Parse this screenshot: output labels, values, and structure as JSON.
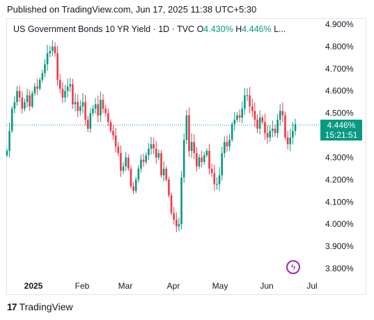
{
  "published": "Published on TradingView.com, Jun 17, 2025 11:38 UTC+5:30",
  "legend": {
    "symbol": "US Government Bonds 10 YR Yield · 1D · TVC",
    "open_label": "O",
    "open_value": "4.430%",
    "high_label": "H",
    "high_value": "4.446%",
    "truncated": "L..."
  },
  "price_tag": {
    "price": "4.446%",
    "countdown": "15:21:51"
  },
  "brand": "TradingView",
  "colors": {
    "up": "#089981",
    "down": "#f23645",
    "event": "#9c27b0"
  },
  "icons": {
    "event": "lightning-bolt-icon",
    "logo": "tradingview-logo-icon"
  },
  "chart_data": {
    "type": "candlestick",
    "title": "US Government Bonds 10 YR Yield · 1D · TVC",
    "y_unit": "%",
    "ylim": [
      3.8,
      4.9
    ],
    "y_ticks": [
      "4.900%",
      "4.800%",
      "4.700%",
      "4.600%",
      "4.500%",
      "4.300%",
      "4.200%",
      "4.100%",
      "4.000%",
      "3.900%",
      "3.800%"
    ],
    "x_ticks": [
      "2025",
      "Feb",
      "Mar",
      "Apr",
      "May",
      "Jun",
      "Jul"
    ],
    "last_price": 4.446,
    "closes": [
      4.33,
      4.42,
      4.52,
      4.55,
      4.6,
      4.57,
      4.52,
      4.55,
      4.58,
      4.53,
      4.59,
      4.62,
      4.61,
      4.65,
      4.68,
      4.72,
      4.77,
      4.78,
      4.8,
      4.77,
      4.65,
      4.61,
      4.57,
      4.6,
      4.62,
      4.63,
      4.54,
      4.55,
      4.51,
      4.53,
      4.55,
      4.47,
      4.43,
      4.5,
      4.52,
      4.54,
      4.49,
      4.56,
      4.52,
      4.5,
      4.46,
      4.42,
      4.4,
      4.35,
      4.32,
      4.24,
      4.26,
      4.3,
      4.25,
      4.17,
      4.15,
      4.2,
      4.25,
      4.29,
      4.28,
      4.31,
      4.34,
      4.36,
      4.34,
      4.3,
      4.32,
      4.22,
      4.25,
      4.2,
      4.13,
      4.05,
      4.02,
      3.99,
      4.0,
      4.21,
      4.38,
      4.49,
      4.33,
      4.37,
      4.32,
      4.26,
      4.3,
      4.28,
      4.31,
      4.33,
      4.25,
      4.23,
      4.18,
      4.18,
      4.22,
      4.32,
      4.37,
      4.35,
      4.38,
      4.45,
      4.47,
      4.49,
      4.48,
      4.52,
      4.58,
      4.58,
      4.53,
      4.51,
      4.47,
      4.43,
      4.48,
      4.46,
      4.41,
      4.39,
      4.42,
      4.43,
      4.41,
      4.47,
      4.51,
      4.49,
      4.39,
      4.36,
      4.39,
      4.42,
      4.45
    ]
  }
}
